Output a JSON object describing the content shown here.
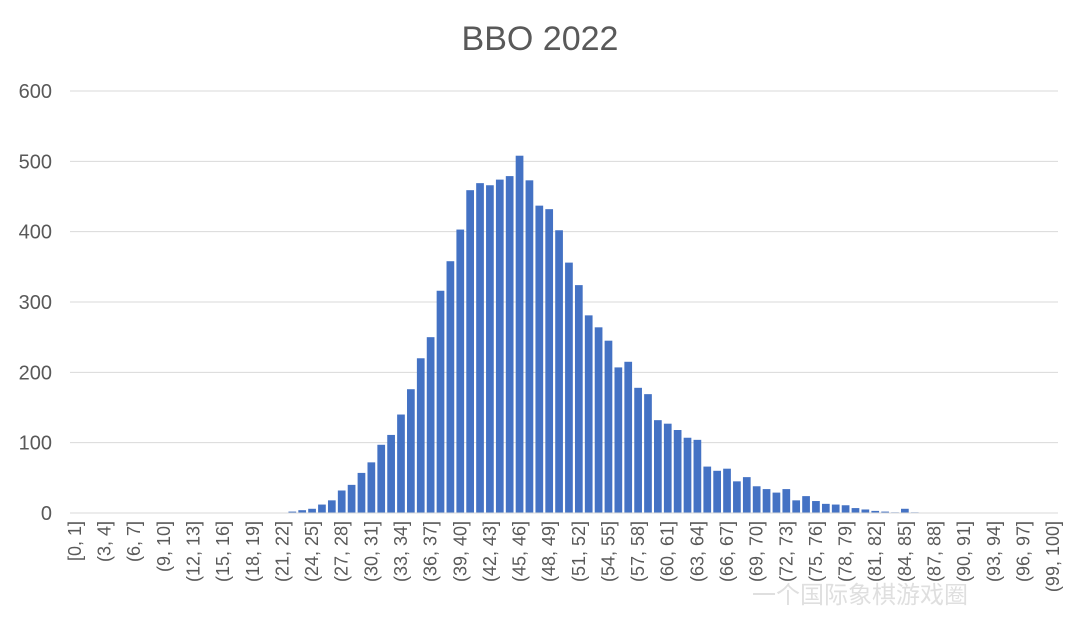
{
  "chart_data": {
    "type": "bar",
    "title": "BBO 2022",
    "xlabel": "",
    "ylabel": "",
    "ylim": [
      0,
      600
    ],
    "yticks": [
      0,
      100,
      200,
      300,
      400,
      500,
      600
    ],
    "grid": true,
    "bar_color": "#4472C4",
    "categories": [
      "[0, 1]",
      "(1, 2]",
      "(2, 3]",
      "(3, 4]",
      "(4, 5]",
      "(5, 6]",
      "(6, 7]",
      "(7, 8]",
      "(8, 9]",
      "(9, 10]",
      "(10, 11]",
      "(11, 12]",
      "(12, 13]",
      "(13, 14]",
      "(14, 15]",
      "(15, 16]",
      "(16, 17]",
      "(17, 18]",
      "(18, 19]",
      "(19, 20]",
      "(20, 21]",
      "(21, 22]",
      "(22, 23]",
      "(23, 24]",
      "(24, 25]",
      "(25, 26]",
      "(26, 27]",
      "(27, 28]",
      "(28, 29]",
      "(29, 30]",
      "(30, 31]",
      "(31, 32]",
      "(32, 33]",
      "(33, 34]",
      "(34, 35]",
      "(35, 36]",
      "(36, 37]",
      "(37, 38]",
      "(38, 39]",
      "(39, 40]",
      "(40, 41]",
      "(41, 42]",
      "(42, 43]",
      "(43, 44]",
      "(44, 45]",
      "(45, 46]",
      "(46, 47]",
      "(47, 48]",
      "(48, 49]",
      "(49, 50]",
      "(50, 51]",
      "(51, 52]",
      "(52, 53]",
      "(53, 54]",
      "(54, 55]",
      "(55, 56]",
      "(56, 57]",
      "(57, 58]",
      "(58, 59]",
      "(59, 60]",
      "(60, 61]",
      "(61, 62]",
      "(62, 63]",
      "(63, 64]",
      "(64, 65]",
      "(65, 66]",
      "(66, 67]",
      "(67, 68]",
      "(68, 69]",
      "(69, 70]",
      "(70, 71]",
      "(71, 72]",
      "(72, 73]",
      "(73, 74]",
      "(74, 75]",
      "(75, 76]",
      "(76, 77]",
      "(77, 78]",
      "(78, 79]",
      "(79, 80]",
      "(80, 81]",
      "(81, 82]",
      "(82, 83]",
      "(83, 84]",
      "(84, 85]",
      "(85, 86]",
      "(86, 87]",
      "(87, 88]",
      "(88, 89]",
      "(89, 90]",
      "(90, 91]",
      "(91, 92]",
      "(92, 93]",
      "(93, 94]",
      "(94, 95]",
      "(95, 96]",
      "(96, 97]",
      "(97, 98]",
      "(98, 99]",
      "(99, 100]"
    ],
    "visible_tick_labels": [
      "[0, 1]",
      "(3, 4]",
      "(6, 7]",
      "(9, 10]",
      "(12, 13]",
      "(15, 16]",
      "(18, 19]",
      "(21, 22]",
      "(24, 25]",
      "(27, 28]",
      "(30, 31]",
      "(33, 34]",
      "(36, 37]",
      "(39, 40]",
      "(42, 43]",
      "(45, 46]",
      "(48, 49]",
      "(51, 52]",
      "(54, 55]",
      "(57, 58]",
      "(60, 61]",
      "(63, 64]",
      "(66, 67]",
      "(69, 70]",
      "(72, 73]",
      "(75, 76]",
      "(78, 79]",
      "(81, 82]",
      "(84, 85]",
      "(87, 88]",
      "(90, 91]",
      "(93, 94]",
      "(96, 97]",
      "(99, 100]"
    ],
    "values": [
      0,
      0,
      0,
      0,
      0,
      0,
      0,
      0,
      0,
      0,
      0,
      0,
      0,
      0,
      0,
      0,
      0,
      0,
      0,
      0,
      0,
      0,
      2,
      4,
      6,
      12,
      18,
      32,
      40,
      57,
      72,
      97,
      111,
      140,
      176,
      220,
      250,
      316,
      358,
      403,
      459,
      469,
      466,
      474,
      479,
      508,
      473,
      437,
      432,
      402,
      356,
      324,
      281,
      264,
      245,
      207,
      215,
      178,
      169,
      132,
      127,
      118,
      107,
      104,
      66,
      60,
      63,
      45,
      51,
      38,
      34,
      29,
      34,
      18,
      24,
      17,
      13,
      12,
      11,
      7,
      5,
      3,
      2,
      1,
      6,
      1,
      0,
      0,
      0,
      0,
      0,
      0,
      0,
      0,
      0,
      0,
      0,
      0,
      0,
      0
    ]
  },
  "watermark": "一个国际象棋游戏圈"
}
